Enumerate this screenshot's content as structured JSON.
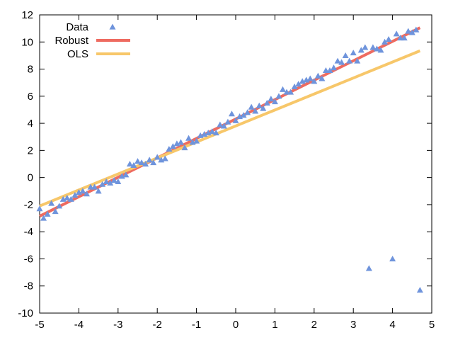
{
  "chart_data": {
    "type": "scatter",
    "title": "",
    "xlabel": "",
    "ylabel": "",
    "xlim": [
      -5,
      5
    ],
    "ylim": [
      -10,
      12
    ],
    "x_ticks": [
      -5,
      -4,
      -3,
      -2,
      -1,
      0,
      1,
      2,
      3,
      4,
      5
    ],
    "y_ticks": [
      -10,
      -8,
      -6,
      -4,
      -2,
      0,
      2,
      4,
      6,
      8,
      10,
      12
    ],
    "grid": false,
    "legend_position": "top-left",
    "series": [
      {
        "name": "Data",
        "kind": "scatter",
        "marker": "triangle",
        "color": "#6f94dc",
        "x": [
          -5.0,
          -4.9,
          -4.8,
          -4.7,
          -4.6,
          -4.5,
          -4.4,
          -4.3,
          -4.2,
          -4.1,
          -4.0,
          -3.9,
          -3.8,
          -3.7,
          -3.6,
          -3.5,
          -3.4,
          -3.3,
          -3.2,
          -3.1,
          -3.0,
          -2.9,
          -2.8,
          -2.7,
          -2.6,
          -2.5,
          -2.4,
          -2.3,
          -2.2,
          -2.1,
          -2.0,
          -1.9,
          -1.8,
          -1.7,
          -1.6,
          -1.5,
          -1.4,
          -1.3,
          -1.2,
          -1.1,
          -1.0,
          -0.9,
          -0.8,
          -0.7,
          -0.6,
          -0.5,
          -0.4,
          -0.3,
          -0.2,
          -0.1,
          0.0,
          0.1,
          0.2,
          0.3,
          0.4,
          0.5,
          0.6,
          0.7,
          0.8,
          0.9,
          1.0,
          1.1,
          1.2,
          1.3,
          1.4,
          1.5,
          1.6,
          1.7,
          1.8,
          1.9,
          2.0,
          2.1,
          2.2,
          2.3,
          2.4,
          2.5,
          2.6,
          2.7,
          2.8,
          2.9,
          3.0,
          3.1,
          3.2,
          3.3,
          3.4,
          3.5,
          3.6,
          3.7,
          3.8,
          3.9,
          4.0,
          4.1,
          4.2,
          4.3,
          4.4,
          4.5,
          4.6,
          4.7
        ],
        "y": [
          -2.3,
          -3.0,
          -2.7,
          -1.9,
          -2.5,
          -2.1,
          -1.6,
          -1.5,
          -1.6,
          -1.3,
          -1.1,
          -1.0,
          -1.2,
          -0.7,
          -0.7,
          -1.0,
          -0.5,
          -0.3,
          -0.4,
          -0.2,
          -0.3,
          0.1,
          0.2,
          1.0,
          0.9,
          1.2,
          1.1,
          1.0,
          1.3,
          1.1,
          1.5,
          1.3,
          1.4,
          2.1,
          2.3,
          2.5,
          2.6,
          2.2,
          2.9,
          2.6,
          2.7,
          3.1,
          3.2,
          3.3,
          3.4,
          3.3,
          3.9,
          3.8,
          4.1,
          4.7,
          4.2,
          4.5,
          4.6,
          4.8,
          5.2,
          4.9,
          5.3,
          5.1,
          5.5,
          5.8,
          5.6,
          6.0,
          6.5,
          6.3,
          6.3,
          6.7,
          6.9,
          7.1,
          7.2,
          7.3,
          7.1,
          7.5,
          7.3,
          7.9,
          7.9,
          8.1,
          8.6,
          8.5,
          9.0,
          8.6,
          9.2,
          8.6,
          9.4,
          9.6,
          -6.7,
          9.6,
          9.5,
          9.4,
          10.0,
          10.2,
          -6.0,
          10.6,
          10.3,
          10.3,
          10.8,
          10.7,
          10.9,
          -8.3
        ]
      },
      {
        "name": "Robust",
        "kind": "line",
        "color": "#ee6b60",
        "x": [
          -5,
          4.7
        ],
        "y": [
          -2.85,
          11.05
        ]
      },
      {
        "name": "OLS",
        "kind": "line",
        "color": "#f7c76a",
        "x": [
          -5,
          4.7
        ],
        "y": [
          -2.1,
          9.35
        ]
      }
    ]
  }
}
